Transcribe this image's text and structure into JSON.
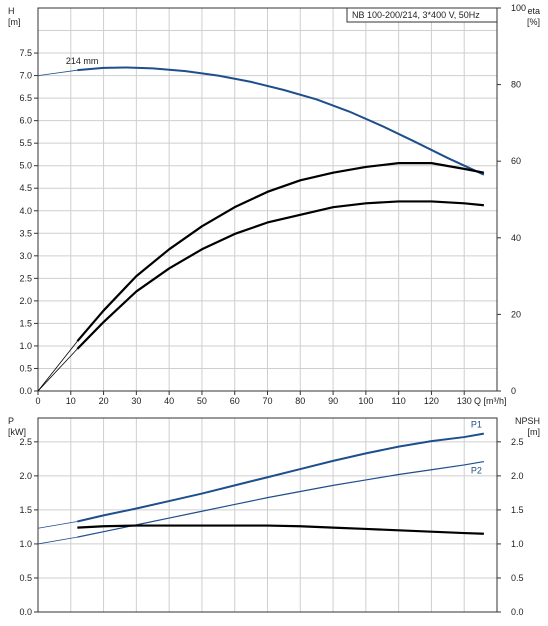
{
  "chart_data": [
    {
      "type": "line",
      "title": "NB 100-200/214, 3*400 V, 50Hz",
      "xlabel": "Q [m³/h]",
      "ylabel_left_name": "H",
      "ylabel_left_unit": "[m]",
      "ylabel_right_name": "eta",
      "ylabel_right_unit": "[%]",
      "xlim": [
        0,
        140
      ],
      "ylim_left": [
        0,
        8.5
      ],
      "ylim_right": [
        0,
        100
      ],
      "x_ticks": [
        "0",
        "10",
        "20",
        "30",
        "40",
        "50",
        "60",
        "70",
        "80",
        "90",
        "100",
        "110",
        "120",
        "130"
      ],
      "y_ticks_left": [
        "0.0",
        "0.5",
        "1.0",
        "1.5",
        "2.0",
        "2.5",
        "3.0",
        "3.5",
        "4.0",
        "4.5",
        "5.0",
        "5.5",
        "6.0",
        "6.5",
        "7.0",
        "7.5"
      ],
      "y_ticks_right": [
        "0",
        "20",
        "40",
        "60",
        "80",
        "100"
      ],
      "grid": true,
      "series": [
        {
          "name": "214 mm",
          "axis": "left",
          "color": "#1f4e8c",
          "x": [
            0,
            12,
            20,
            27,
            35,
            45,
            55,
            65,
            75,
            85,
            95,
            105,
            115,
            125,
            136
          ],
          "y": [
            7.0,
            7.12,
            7.17,
            7.18,
            7.16,
            7.1,
            7.0,
            6.86,
            6.68,
            6.47,
            6.2,
            5.88,
            5.53,
            5.17,
            4.8
          ],
          "dashed_until": 12
        },
        {
          "name": "",
          "axis": "right",
          "color": "#000000",
          "x": [
            0,
            12,
            20,
            30,
            40,
            50,
            60,
            70,
            80,
            90,
            100,
            110,
            120,
            130,
            136
          ],
          "y": [
            0,
            13,
            21,
            30,
            37,
            43,
            48,
            52,
            55,
            57,
            58.5,
            59.5,
            59.5,
            58,
            57
          ],
          "dashed_until": 12
        },
        {
          "name": "",
          "axis": "right",
          "color": "#000000",
          "x": [
            0,
            12,
            20,
            30,
            40,
            50,
            60,
            70,
            80,
            90,
            100,
            110,
            120,
            130,
            136
          ],
          "y": [
            0,
            11,
            18,
            26,
            32,
            37,
            41,
            44,
            46,
            48,
            49,
            49.5,
            49.5,
            49,
            48.5
          ],
          "dashed_until": 12
        }
      ]
    },
    {
      "type": "line",
      "xlim": [
        0,
        140
      ],
      "ylabel_left_name": "P",
      "ylabel_left_unit": "[kW]",
      "ylabel_right_name": "NPSH",
      "ylabel_right_unit": "[m]",
      "ylim_left": [
        0,
        2.85
      ],
      "ylim_right": [
        0,
        2.85
      ],
      "y_ticks_left": [
        "0.0",
        "0.5",
        "1.0",
        "1.5",
        "2.0",
        "2.5"
      ],
      "y_ticks_right": [
        "0.0",
        "0.5",
        "1.0",
        "1.5",
        "2.0",
        "2.5"
      ],
      "grid": true,
      "series": [
        {
          "name": "P1",
          "axis": "left",
          "color": "#1f4e8c",
          "x": [
            0,
            12,
            20,
            30,
            40,
            50,
            60,
            70,
            80,
            90,
            100,
            110,
            120,
            130,
            136
          ],
          "y": [
            1.23,
            1.33,
            1.42,
            1.52,
            1.63,
            1.74,
            1.86,
            1.98,
            2.1,
            2.22,
            2.33,
            2.43,
            2.51,
            2.57,
            2.62
          ],
          "dashed_until": 12
        },
        {
          "name": "P2",
          "axis": "left",
          "color": "#1f4e8c",
          "x": [
            0,
            12,
            20,
            30,
            40,
            50,
            60,
            70,
            80,
            90,
            100,
            110,
            120,
            130,
            136
          ],
          "y": [
            1.0,
            1.1,
            1.18,
            1.28,
            1.38,
            1.48,
            1.58,
            1.68,
            1.77,
            1.86,
            1.94,
            2.02,
            2.09,
            2.16,
            2.21
          ],
          "dashed_until": 12
        },
        {
          "name": "",
          "axis": "right",
          "color": "#000000",
          "x": [
            12,
            20,
            30,
            40,
            50,
            60,
            70,
            80,
            90,
            100,
            110,
            120,
            130,
            136
          ],
          "y": [
            1.24,
            1.26,
            1.27,
            1.27,
            1.27,
            1.27,
            1.27,
            1.26,
            1.24,
            1.22,
            1.2,
            1.18,
            1.16,
            1.15
          ]
        }
      ]
    }
  ]
}
